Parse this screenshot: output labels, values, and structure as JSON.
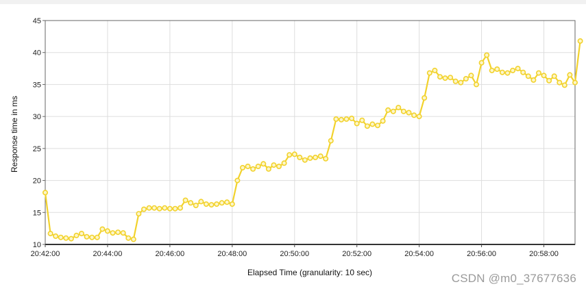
{
  "chart_data": {
    "type": "line",
    "xlabel": "Elapsed Time (granularity: 10 sec)",
    "ylabel": "Response time in ms",
    "ylim": [
      10,
      45
    ],
    "y_ticks": [
      10,
      15,
      20,
      25,
      30,
      35,
      40,
      45
    ],
    "x_ticks": [
      "20:42:00",
      "20:44:00",
      "20:46:00",
      "20:48:00",
      "20:50:00",
      "20:52:00",
      "20:54:00",
      "20:56:00",
      "20:58:00"
    ],
    "x_range": [
      "20:42:00",
      "20:59:00"
    ],
    "sample_interval_sec": 10,
    "grid": true,
    "legend": "none",
    "series": [
      {
        "color": "#f2d22c",
        "values": [
          18.1,
          11.7,
          11.3,
          11.1,
          11.0,
          10.9,
          11.4,
          11.7,
          11.2,
          11.1,
          11.1,
          12.4,
          12.1,
          11.8,
          11.9,
          11.8,
          11.0,
          10.8,
          14.8,
          15.5,
          15.7,
          15.7,
          15.6,
          15.7,
          15.6,
          15.6,
          15.7,
          16.9,
          16.5,
          16.1,
          16.7,
          16.3,
          16.2,
          16.3,
          16.5,
          16.6,
          16.3,
          20.0,
          22.0,
          22.2,
          21.8,
          22.2,
          22.6,
          21.8,
          22.4,
          22.2,
          22.7,
          24.0,
          24.1,
          23.6,
          23.2,
          23.5,
          23.6,
          23.8,
          23.4,
          26.2,
          29.6,
          29.5,
          29.6,
          29.7,
          28.9,
          29.4,
          28.5,
          28.8,
          28.6,
          29.3,
          31.0,
          30.8,
          31.4,
          30.8,
          30.6,
          30.2,
          30.0,
          32.9,
          36.8,
          37.2,
          36.2,
          36.0,
          36.1,
          35.5,
          35.3,
          35.9,
          36.4,
          35.0,
          38.4,
          39.6,
          37.2,
          37.4,
          36.9,
          36.8,
          37.2,
          37.5,
          36.9,
          36.3,
          35.7,
          36.8,
          36.4,
          35.6,
          36.3,
          35.3,
          34.9,
          36.5,
          35.3,
          41.8
        ]
      }
    ]
  },
  "watermark": "CSDN @m0_37677636"
}
